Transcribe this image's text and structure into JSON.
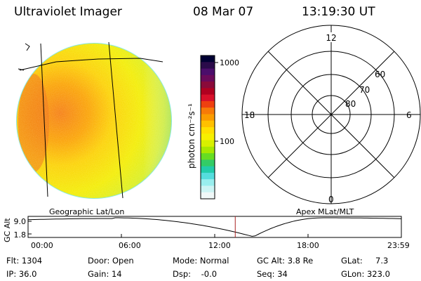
{
  "header": {
    "title": "Ultraviolet Imager",
    "date": "08 Mar 07",
    "time": "13:19:30 UT"
  },
  "colorbar": {
    "unit_label": "photon cm⁻²s⁻¹",
    "ticks": [
      "1000",
      "100"
    ],
    "colors": [
      "#000033",
      "#2a0a4a",
      "#4b0d6b",
      "#6a0a5a",
      "#8a0a3a",
      "#b00020",
      "#d8102a",
      "#ee4010",
      "#f77a08",
      "#fb9c00",
      "#ffc000",
      "#ffe000",
      "#f7f000",
      "#d8f000",
      "#a8e800",
      "#66dd22",
      "#33cc66",
      "#22ccaa",
      "#55dddd",
      "#99eeee",
      "#ccf4f4",
      "#f0f8f8"
    ]
  },
  "polar": {
    "mlt_labels": [
      "12",
      "18",
      "6",
      "0"
    ],
    "mlat_labels": [
      "60",
      "70",
      "80"
    ]
  },
  "labels": {
    "geographic": "Geographic Lat/Lon",
    "apex": "Apex MLat/MLT",
    "gc_alt_axis": "GC Alt"
  },
  "altitude_plot": {
    "y_ticks": [
      "9.0",
      "1.8"
    ],
    "x_ticks": [
      "00:00",
      "06:00",
      "12:00",
      "18:00",
      "23:59"
    ],
    "current_marker_hours": 13.32,
    "trace_color": "#000000",
    "marker_color": "#aa2222"
  },
  "info": {
    "flt": "Flt: 1304",
    "ip": "IP: 36.0",
    "door": "Door: Open",
    "gain": "Gain: 14",
    "mode": "Mode: Normal",
    "dsp": "Dsp:    -0.0",
    "gc_alt": "GC Alt: 3.8 Re",
    "seq": "Seq: 34",
    "glat": "GLat:     7.3",
    "glon": "GLon: 323.0"
  }
}
